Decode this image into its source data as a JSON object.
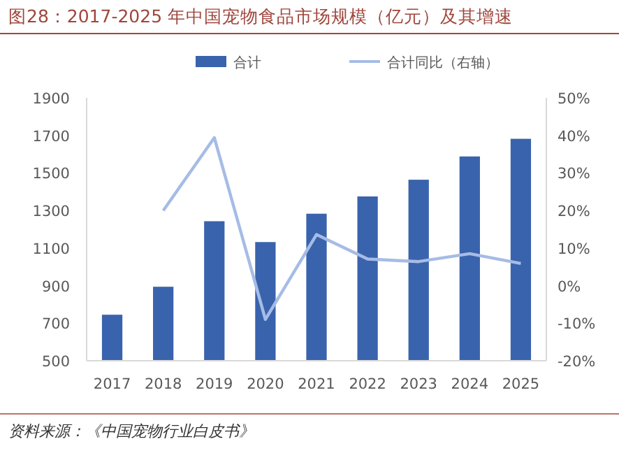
{
  "chart_data": {
    "type": "bar",
    "title": "图28：2017-2025 年中国宠物食品市场规模（亿元）及其增速",
    "categories": [
      "2017",
      "2018",
      "2019",
      "2020",
      "2021",
      "2022",
      "2023",
      "2024",
      "2025"
    ],
    "series": [
      {
        "name": "合计",
        "color": "#3a63ad",
        "values": [
          745,
          894,
          1243,
          1132,
          1283,
          1375,
          1464,
          1588,
          1682
        ]
      },
      {
        "name": "合计同比（右轴）",
        "type": "line",
        "axis": "y2",
        "color": "#a6bce6",
        "values": [
          null,
          20,
          39.4,
          -9,
          13.6,
          7.1,
          6.4,
          8.5,
          5.9
        ]
      }
    ],
    "ylim": [
      500,
      1900
    ],
    "yticks": [
      500,
      700,
      900,
      1100,
      1300,
      1500,
      1700,
      1900
    ],
    "y2lim": [
      -20,
      50
    ],
    "y2ticks": [
      {
        "value": -20,
        "label": "-20%"
      },
      {
        "value": -10,
        "label": "-10%"
      },
      {
        "value": 0,
        "label": "0%"
      },
      {
        "value": 10,
        "label": "10%"
      },
      {
        "value": 20,
        "label": "20%"
      },
      {
        "value": 30,
        "label": "30%"
      },
      {
        "value": 40,
        "label": "40%"
      },
      {
        "value": 50,
        "label": "50%"
      }
    ],
    "legend": "top",
    "grid": false,
    "marker": "none",
    "line_style": "solid",
    "annotations": [
      "资料来源：《中国宠物行业白皮书》"
    ]
  }
}
